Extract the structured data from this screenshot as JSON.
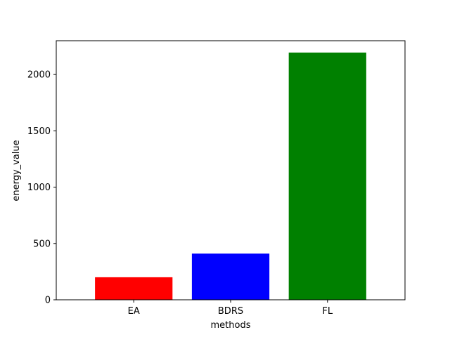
{
  "chart_data": {
    "type": "bar",
    "title": "",
    "xlabel": "methods",
    "ylabel": "energy_value",
    "categories": [
      "EA",
      "BDRS",
      "FL"
    ],
    "values": [
      200,
      410,
      2195
    ],
    "bar_colors": [
      "#ff0000",
      "#0000ff",
      "#008000"
    ],
    "ylim": [
      0,
      2300
    ],
    "yticks": [
      0,
      500,
      1000,
      1500,
      2000
    ],
    "ytick_labels": [
      "0",
      "500",
      "1000",
      "1500",
      "2000"
    ],
    "grid": false,
    "legend": "none"
  }
}
